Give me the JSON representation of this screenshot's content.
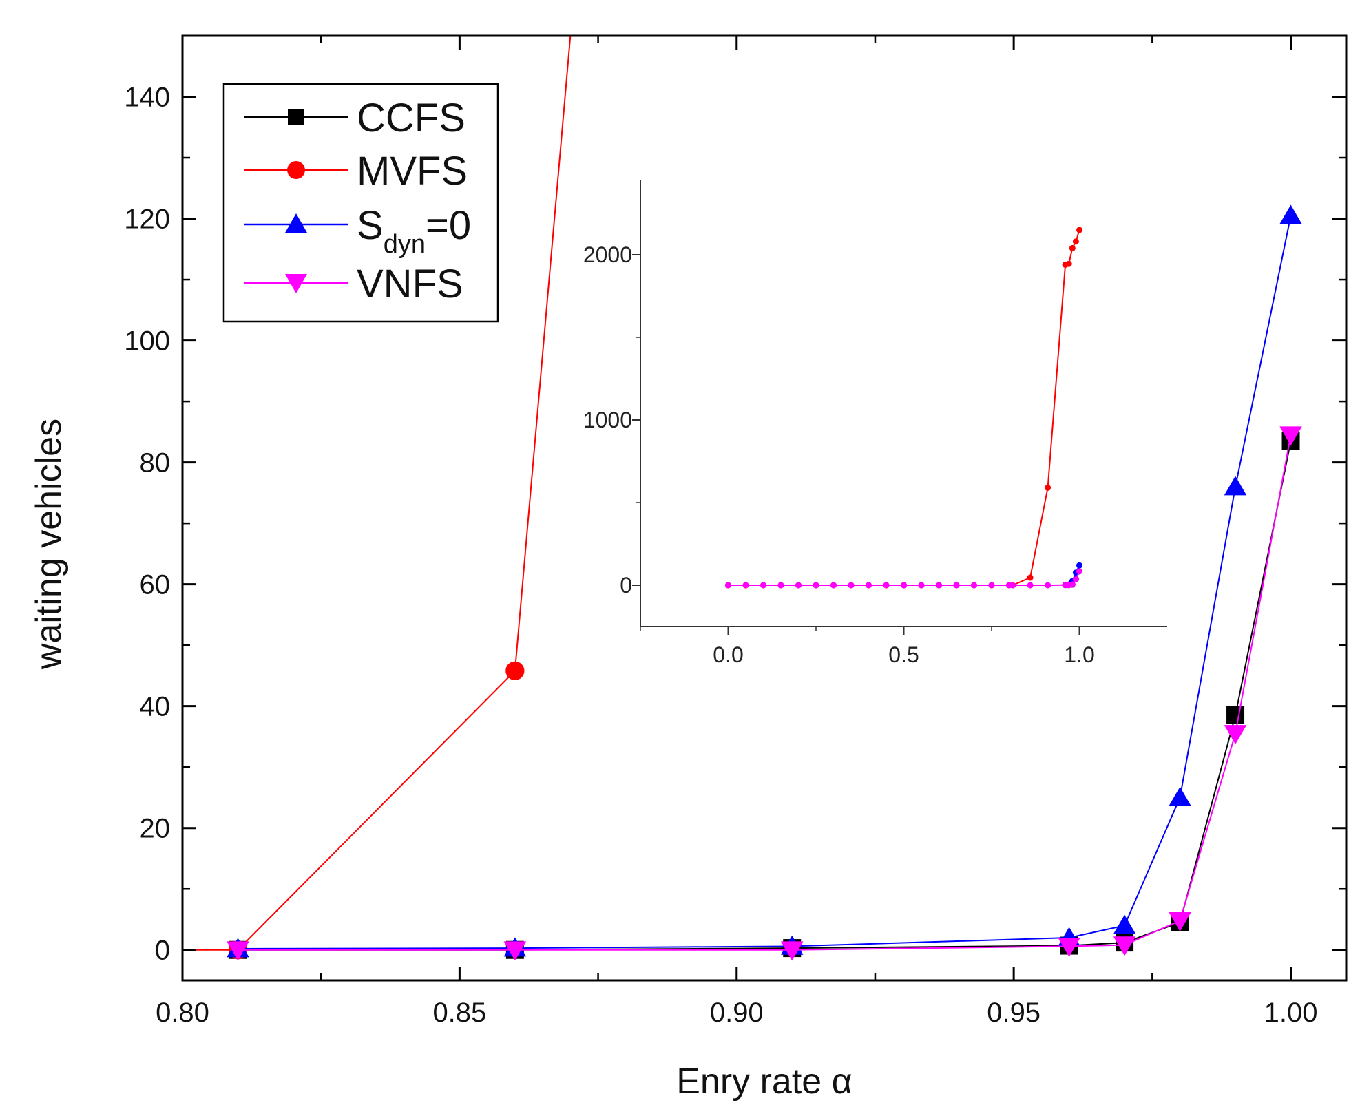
{
  "chart_data": {
    "main": {
      "type": "line",
      "title": "",
      "xlabel": "Enry rate α",
      "ylabel": "waiting vehicles",
      "xlim": [
        0.8,
        1.01
      ],
      "ylim": [
        -5,
        150
      ],
      "xticks": [
        0.8,
        0.85,
        0.9,
        0.95,
        1.0
      ],
      "xtick_labels": [
        "0.80",
        "0.85",
        "0.90",
        "0.95",
        "1.00"
      ],
      "yticks": [
        0,
        20,
        40,
        60,
        80,
        100,
        120,
        140
      ],
      "ytick_labels": [
        "0",
        "20",
        "40",
        "60",
        "80",
        "100",
        "120",
        "140"
      ],
      "legend_position": "top-left",
      "series": [
        {
          "name": "CCFS",
          "color": "#000000",
          "marker": "square",
          "x": [
            0.81,
            0.86,
            0.91,
            0.96,
            0.97,
            0.98,
            0.99,
            1.0
          ],
          "y": [
            0,
            0,
            0.3,
            0.7,
            1.2,
            4.5,
            38.5,
            83.5
          ]
        },
        {
          "name": "MVFS",
          "color": "#ff0000",
          "marker": "circle",
          "x": [
            0.8,
            0.81,
            0.86,
            0.87
          ],
          "y": [
            0,
            0,
            45.8,
            150
          ]
        },
        {
          "name": "S_dyn=0",
          "color": "#0000ff",
          "marker": "triangle-up",
          "x": [
            0.81,
            0.86,
            0.91,
            0.96,
            0.97,
            0.98,
            0.99,
            1.0
          ],
          "y": [
            0.2,
            0.3,
            0.6,
            2.0,
            4.0,
            25.0,
            76.0,
            120.5
          ]
        },
        {
          "name": "VNFS",
          "color": "#ff00ff",
          "marker": "triangle-down",
          "x": [
            0.81,
            0.86,
            0.91,
            0.96,
            0.97,
            0.98,
            0.99,
            1.0
          ],
          "y": [
            0,
            0,
            0,
            0.6,
            0.8,
            4.8,
            35.5,
            84.5
          ]
        }
      ],
      "legend": {
        "entries": [
          {
            "label": "CCFS"
          },
          {
            "label": "MVFS"
          },
          {
            "label_main": "S",
            "label_sub": "dyn",
            "label_tail": "=0"
          },
          {
            "label": "VNFS"
          }
        ]
      }
    },
    "inset": {
      "type": "line",
      "xlim": [
        -0.25,
        1.25
      ],
      "ylim": [
        -250,
        2450
      ],
      "xticks": [
        0.0,
        0.5,
        1.0
      ],
      "xtick_labels": [
        "0.0",
        "0.5",
        "1.0"
      ],
      "yticks": [
        0,
        1000,
        2000
      ],
      "ytick_labels": [
        "0",
        "1000",
        "2000"
      ],
      "series": [
        {
          "name": "MVFS",
          "color": "#ff0000",
          "x": [
            0,
            0.05,
            0.1,
            0.15,
            0.2,
            0.25,
            0.3,
            0.35,
            0.4,
            0.45,
            0.5,
            0.55,
            0.6,
            0.65,
            0.7,
            0.75,
            0.8,
            0.81,
            0.86,
            0.91,
            0.96,
            0.97,
            0.98,
            0.99,
            1.0
          ],
          "y": [
            0,
            0,
            0,
            0,
            0,
            0,
            0,
            0,
            0,
            0,
            0,
            0,
            0,
            0,
            0,
            0,
            0,
            0,
            46,
            590,
            1940,
            1945,
            2040,
            2080,
            2150
          ]
        },
        {
          "name": "CCFS",
          "color": "#000000",
          "x": [
            0.96,
            0.97,
            0.98,
            0.99,
            1.0
          ],
          "y": [
            1,
            1,
            4,
            38,
            84
          ]
        },
        {
          "name": "S_dyn=0",
          "color": "#0000ff",
          "x": [
            0.96,
            0.97,
            0.98,
            0.99,
            1.0
          ],
          "y": [
            2,
            4,
            25,
            76,
            120
          ]
        },
        {
          "name": "VNFS",
          "color": "#ff00ff",
          "x": [
            0,
            0.05,
            0.1,
            0.15,
            0.2,
            0.25,
            0.3,
            0.35,
            0.4,
            0.45,
            0.5,
            0.55,
            0.6,
            0.65,
            0.7,
            0.75,
            0.8,
            0.81,
            0.86,
            0.91,
            0.96,
            0.97,
            0.98,
            0.99,
            1.0
          ],
          "y": [
            0,
            0,
            0,
            0,
            0,
            0,
            0,
            0,
            0,
            0,
            0,
            0,
            0,
            0,
            0,
            0,
            0,
            0,
            0,
            0,
            1,
            1,
            5,
            35,
            84
          ]
        }
      ]
    }
  }
}
